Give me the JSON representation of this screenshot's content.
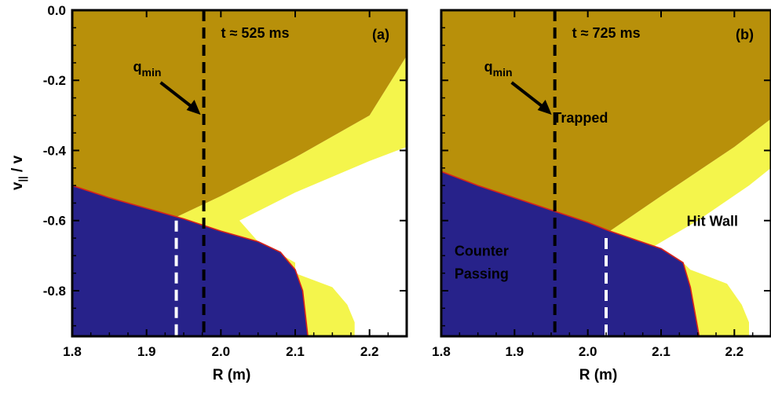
{
  "colors": {
    "trapped": "#b8900a",
    "counter_passing": "#27228a",
    "hit_wall": "#ffffff",
    "yellow_band": "#f4f54c",
    "boundary": "#d8231b",
    "qmin_line": "#000000",
    "white_dash": "#ffffff"
  },
  "shared_axes": {
    "ylabel_main": "v",
    "ylabel_sub": "||",
    "ylabel_rest": " / v",
    "xlabel": "R (m)",
    "xlim": [
      1.8,
      2.25
    ],
    "ylim": [
      -0.93,
      0.0
    ],
    "x_ticks": [
      1.8,
      1.9,
      2.0,
      2.1,
      2.2
    ],
    "x_tick_labels": [
      "1.8",
      "1.9",
      "2.0",
      "2.1",
      "2.2"
    ],
    "y_ticks": [
      0.0,
      -0.2,
      -0.4,
      -0.6,
      -0.8
    ],
    "y_tick_labels": [
      "0.0",
      "-0.2",
      "-0.4",
      "-0.6",
      "-0.8"
    ]
  },
  "chart_data": [
    {
      "type": "area",
      "panel_label": "(a)",
      "time_label": "t ≈ 525 ms",
      "qmin_label_main": "q",
      "qmin_label_sub": "min",
      "qmin_R": 1.977,
      "white_dash_R": 1.94,
      "white_dash_y": [
        -0.93,
        -0.6
      ],
      "passing_boundary": [
        [
          1.8,
          -0.5
        ],
        [
          1.85,
          -0.535
        ],
        [
          1.9,
          -0.565
        ],
        [
          1.95,
          -0.595
        ],
        [
          2.0,
          -0.63
        ],
        [
          2.05,
          -0.66
        ],
        [
          2.08,
          -0.69
        ],
        [
          2.1,
          -0.74
        ],
        [
          2.11,
          -0.8
        ],
        [
          2.117,
          -0.93
        ]
      ],
      "yellow_upper": [
        [
          1.93,
          -0.6
        ],
        [
          2.0,
          -0.53
        ],
        [
          2.1,
          -0.42
        ],
        [
          2.2,
          -0.3
        ],
        [
          2.25,
          -0.13
        ]
      ],
      "yellow_inner": [
        [
          2.025,
          -0.6
        ],
        [
          2.1,
          -0.52
        ],
        [
          2.2,
          -0.43
        ],
        [
          2.25,
          -0.39
        ]
      ],
      "yellow_lower": [
        [
          2.025,
          -0.6
        ],
        [
          2.05,
          -0.66
        ],
        [
          2.1,
          -0.72
        ]
      ],
      "yellow_bottom": [
        [
          2.1,
          -0.75
        ],
        [
          2.15,
          -0.79
        ],
        [
          2.17,
          -0.84
        ],
        [
          2.18,
          -0.89
        ],
        [
          2.18,
          -0.93
        ]
      ],
      "region_labels": []
    },
    {
      "type": "area",
      "panel_label": "(b)",
      "time_label": "t ≈ 725 ms",
      "qmin_label_main": "q",
      "qmin_label_sub": "min",
      "qmin_R": 1.955,
      "white_dash_R": 2.025,
      "white_dash_y": [
        -0.93,
        -0.65
      ],
      "passing_boundary": [
        [
          1.8,
          -0.46
        ],
        [
          1.85,
          -0.5
        ],
        [
          1.9,
          -0.535
        ],
        [
          1.95,
          -0.57
        ],
        [
          2.0,
          -0.605
        ],
        [
          2.03,
          -0.63
        ],
        [
          2.1,
          -0.68
        ],
        [
          2.13,
          -0.72
        ],
        [
          2.14,
          -0.79
        ],
        [
          2.152,
          -0.93
        ]
      ],
      "yellow_upper": [
        [
          2.03,
          -0.63
        ],
        [
          2.1,
          -0.53
        ],
        [
          2.2,
          -0.39
        ],
        [
          2.25,
          -0.31
        ]
      ],
      "yellow_inner": [
        [
          2.085,
          -0.68
        ],
        [
          2.15,
          -0.6
        ],
        [
          2.22,
          -0.5
        ],
        [
          2.25,
          -0.45
        ]
      ],
      "yellow_lower": [
        [
          2.085,
          -0.68
        ],
        [
          2.1,
          -0.7
        ],
        [
          2.13,
          -0.72
        ]
      ],
      "yellow_bottom": [
        [
          2.14,
          -0.74
        ],
        [
          2.19,
          -0.78
        ],
        [
          2.21,
          -0.84
        ],
        [
          2.22,
          -0.89
        ],
        [
          2.22,
          -0.93
        ]
      ],
      "region_labels": [
        {
          "text": "Trapped",
          "R": 1.99,
          "y": -0.32,
          "color": "#000000"
        },
        {
          "text": "Hit Wall",
          "R": 2.17,
          "y": -0.615,
          "color": "#000000"
        },
        {
          "text": "Counter",
          "R": 1.855,
          "y": -0.7,
          "color": "#ffffff"
        },
        {
          "text": "Passing",
          "R": 1.855,
          "y": -0.765,
          "color": "#ffffff"
        }
      ]
    }
  ]
}
